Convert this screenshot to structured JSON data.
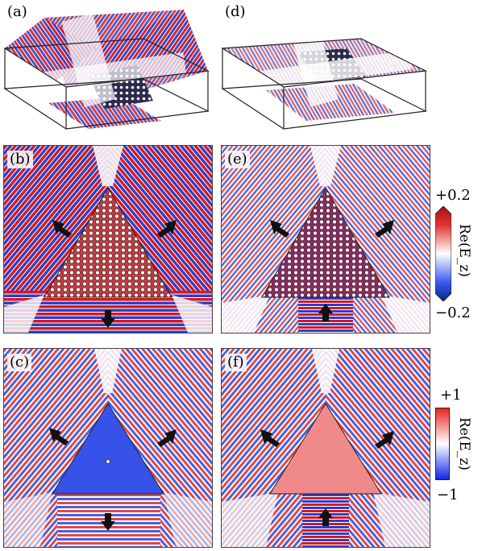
{
  "figure": {
    "panels": [
      {
        "id": "a",
        "label": "(a)"
      },
      {
        "id": "d",
        "label": "(d)"
      },
      {
        "id": "b",
        "label": "(b)"
      },
      {
        "id": "e",
        "label": "(e)"
      },
      {
        "id": "c",
        "label": "(c)"
      },
      {
        "id": "f",
        "label": "(f)"
      }
    ],
    "colorbar_top": {
      "max_label": "+0.2",
      "min_label": "−0.2",
      "title": "Re(E_z)"
    },
    "colorbar_bottom": {
      "max_label": "+1",
      "min_label": "−1",
      "title": "Re(E_z)"
    },
    "colors": {
      "positive": "#d7191c",
      "negative": "#2c3fcf",
      "neutral": "#ffffff",
      "triangle_blue": "#3652e8",
      "triangle_red": "#f08a8a"
    }
  }
}
